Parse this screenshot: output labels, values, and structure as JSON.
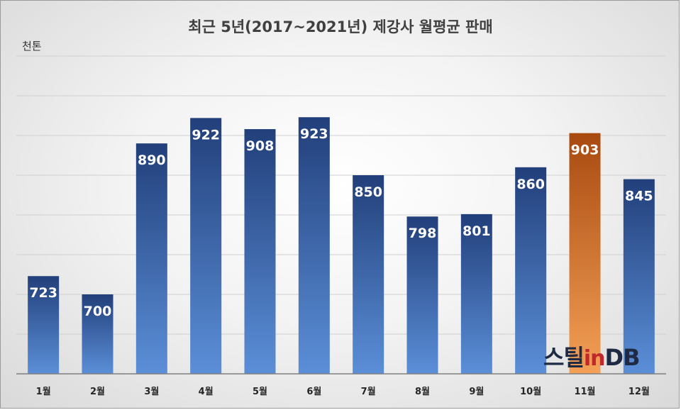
{
  "chart_data": {
    "type": "bar",
    "title": "최근 5년(2017~2021년) 제강사 월평균 판매",
    "ylabel": "천톤",
    "xlabel": "",
    "categories": [
      "1월",
      "2월",
      "3월",
      "4월",
      "5월",
      "6월",
      "7월",
      "8월",
      "9월",
      "10월",
      "11월",
      "12월"
    ],
    "values": [
      723,
      700,
      890,
      922,
      908,
      923,
      850,
      798,
      801,
      860,
      903,
      845
    ],
    "highlight_index": 10,
    "ylim": [
      600,
      1000
    ],
    "grid": true,
    "legend": "none",
    "colors": {
      "bar_top": "#223f7a",
      "bar_bottom": "#5b8fd8",
      "highlight_top": "#a84a10",
      "highlight_bottom": "#f4a057"
    }
  },
  "watermark": {
    "part1": "스틸",
    "part2": "in",
    "part3": "DB"
  }
}
